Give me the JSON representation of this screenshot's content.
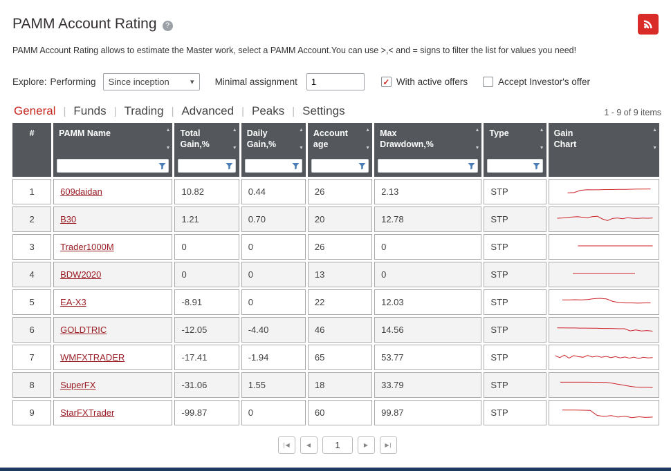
{
  "colors": {
    "accent_red": "#c8281e",
    "header_bg": "#54585c",
    "link": "#9b1c23",
    "spark": "#cc2127",
    "funnel": "#4a7db5",
    "footer_bar": "#1f3a5f"
  },
  "icons": {
    "help": "?",
    "check": "✓",
    "chevron_down": "▾",
    "sort_asc": "▲",
    "sort_desc": "▼"
  },
  "header": {
    "title": "PAMM Account Rating",
    "description": "PAMM Account Rating allows to estimate the Master work, select a PAMM Account.You can use >,< and = signs to filter the list for values you need!"
  },
  "filters": {
    "explore_label": "Explore:",
    "performing_label": "Performing",
    "period_value": "Since inception",
    "min_assignment_label": "Minimal assignment",
    "min_assignment_value": "1",
    "with_active_offers_label": "With active offers",
    "with_active_offers_checked": true,
    "accept_offer_label": "Accept Investor's offer",
    "accept_offer_checked": false
  },
  "tabs": [
    {
      "label": "General",
      "active": true
    },
    {
      "label": "Funds",
      "active": false
    },
    {
      "label": "Trading",
      "active": false
    },
    {
      "label": "Advanced",
      "active": false
    },
    {
      "label": "Peaks",
      "active": false
    },
    {
      "label": "Settings",
      "active": false
    }
  ],
  "table": {
    "items_count": "1 - 9 of 9 items",
    "columns": [
      {
        "id": "num",
        "label": "#",
        "label_lines": [
          "#"
        ],
        "width": 56,
        "sortable": false,
        "filterable": false,
        "align": "center"
      },
      {
        "id": "name",
        "label": "PAMM Name",
        "label_lines": [
          "PAMM Name"
        ],
        "width": 172,
        "sortable": true,
        "filterable": true
      },
      {
        "id": "total_gain",
        "label": "Total Gain,%",
        "label_lines": [
          "Total",
          "Gain,%"
        ],
        "width": 93,
        "sortable": true,
        "filterable": true
      },
      {
        "id": "daily_gain",
        "label": "Daily Gain,%",
        "label_lines": [
          "Daily",
          "Gain,%"
        ],
        "width": 93,
        "sortable": true,
        "filterable": true
      },
      {
        "id": "age",
        "label": "Account age",
        "label_lines": [
          "Account",
          "age"
        ],
        "width": 93,
        "sortable": true,
        "filterable": true
      },
      {
        "id": "drawdown",
        "label": "Max Drawdown,%",
        "label_lines": [
          "Max",
          "Drawdown,%"
        ],
        "width": 155,
        "sortable": true,
        "filterable": true
      },
      {
        "id": "type",
        "label": "Type",
        "label_lines": [
          "Type"
        ],
        "width": 90,
        "sortable": true,
        "filterable": true
      },
      {
        "id": "chart",
        "label": "Gain Chart",
        "label_lines": [
          "Gain",
          "Chart"
        ],
        "width": 160,
        "sortable": true,
        "filterable": false
      }
    ],
    "rows": [
      {
        "num": "1",
        "name": "609daidan",
        "total_gain": "10.82",
        "daily_gain": "0.44",
        "age": "26",
        "drawdown": "2.13",
        "type": "STP",
        "spark": {
          "x0": 0.15,
          "x1": 0.95,
          "values": [
            35,
            37,
            52,
            56,
            55,
            56,
            57,
            57,
            58,
            58,
            59,
            60,
            60,
            61
          ]
        }
      },
      {
        "num": "2",
        "name": "B30",
        "total_gain": "1.21",
        "daily_gain": "0.70",
        "age": "20",
        "drawdown": "12.78",
        "type": "STP",
        "spark": {
          "x0": 0.05,
          "x1": 0.97,
          "values": [
            50,
            52,
            55,
            58,
            60,
            57,
            53,
            60,
            63,
            45,
            35,
            48,
            52,
            47,
            53,
            50,
            49,
            51,
            50,
            52
          ]
        }
      },
      {
        "num": "3",
        "name": "Trader1000M",
        "total_gain": "0",
        "daily_gain": "0",
        "age": "26",
        "drawdown": "0",
        "type": "STP",
        "spark": {
          "x0": 0.25,
          "x1": 0.97,
          "values": [
            50,
            50
          ]
        }
      },
      {
        "num": "4",
        "name": "BDW2020",
        "total_gain": "0",
        "daily_gain": "0",
        "age": "13",
        "drawdown": "0",
        "type": "STP",
        "spark": {
          "x0": 0.2,
          "x1": 0.8,
          "values": [
            50,
            50
          ]
        }
      },
      {
        "num": "5",
        "name": "EA-X3",
        "total_gain": "-8.91",
        "daily_gain": "0",
        "age": "22",
        "drawdown": "12.03",
        "type": "STP",
        "spark": {
          "x0": 0.1,
          "x1": 0.95,
          "values": [
            58,
            58,
            59,
            58,
            60,
            66,
            68,
            64,
            48,
            40,
            38,
            38,
            37,
            38,
            38
          ]
        }
      },
      {
        "num": "6",
        "name": "GOLDTRIC",
        "total_gain": "-12.05",
        "daily_gain": "-4.40",
        "age": "46",
        "drawdown": "14.56",
        "type": "STP",
        "spark": {
          "x0": 0.05,
          "x1": 0.97,
          "values": [
            56,
            56,
            55,
            55,
            54,
            54,
            53,
            53,
            52,
            52,
            51,
            50,
            50,
            36,
            42,
            35,
            38,
            34
          ]
        }
      },
      {
        "num": "7",
        "name": "WMFXTRADER",
        "total_gain": "-17.41",
        "daily_gain": "-1.94",
        "age": "65",
        "drawdown": "53.77",
        "type": "STP",
        "spark": {
          "x0": 0.03,
          "x1": 0.97,
          "values": [
            55,
            42,
            58,
            38,
            55,
            48,
            44,
            56,
            46,
            52,
            44,
            50,
            42,
            48,
            40,
            46,
            38,
            45,
            36,
            44,
            40,
            42
          ]
        }
      },
      {
        "num": "8",
        "name": "SuperFX",
        "total_gain": "-31.06",
        "daily_gain": "1.55",
        "age": "18",
        "drawdown": "33.79",
        "type": "STP",
        "spark": {
          "x0": 0.08,
          "x1": 0.97,
          "values": [
            62,
            62,
            62,
            62,
            62,
            62,
            61,
            61,
            60,
            55,
            48,
            42,
            35,
            30,
            28,
            28,
            27
          ]
        }
      },
      {
        "num": "9",
        "name": "StarFXTrader",
        "total_gain": "-99.87",
        "daily_gain": "0",
        "age": "60",
        "drawdown": "99.87",
        "type": "STP",
        "spark": {
          "x0": 0.1,
          "x1": 0.97,
          "values": [
            60,
            60,
            60,
            59,
            58,
            25,
            18,
            24,
            14,
            20,
            10,
            16,
            12,
            14
          ]
        }
      }
    ]
  },
  "pagination": {
    "first_glyph": "|◀",
    "prev_glyph": "◀",
    "current_page": "1",
    "next_glyph": "▶",
    "last_glyph": "▶|"
  }
}
